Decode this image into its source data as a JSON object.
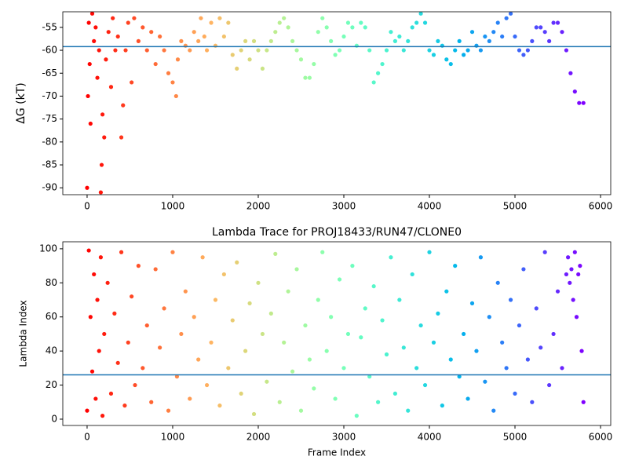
{
  "chart_data": [
    {
      "type": "scatter",
      "ylabel": "ΔG (kT)",
      "colormap": "rainbow_r",
      "hline": -59.2,
      "hline_color": "#1f77b4",
      "xlim": [
        -284,
        6119
      ],
      "ylim": [
        -91.5,
        -51.6
      ],
      "xticks": [
        0,
        1000,
        2000,
        3000,
        4000,
        5000,
        6000
      ],
      "yticks": [
        -90,
        -85,
        -80,
        -75,
        -70,
        -65,
        -60,
        -55
      ],
      "x": [
        0,
        10,
        20,
        30,
        40,
        60,
        80,
        100,
        120,
        140,
        160,
        170,
        180,
        200,
        220,
        250,
        280,
        300,
        330,
        360,
        400,
        420,
        450,
        480,
        520,
        550,
        600,
        650,
        700,
        750,
        800,
        850,
        900,
        950,
        1000,
        1040,
        1060,
        1100,
        1150,
        1200,
        1250,
        1300,
        1330,
        1370,
        1400,
        1450,
        1500,
        1550,
        1600,
        1650,
        1700,
        1750,
        1800,
        1850,
        1900,
        1950,
        2000,
        2050,
        2100,
        2150,
        2200,
        2250,
        2300,
        2350,
        2400,
        2450,
        2500,
        2550,
        2600,
        2650,
        2700,
        2750,
        2800,
        2850,
        2900,
        2950,
        3000,
        3050,
        3100,
        3150,
        3200,
        3250,
        3300,
        3350,
        3400,
        3450,
        3500,
        3550,
        3600,
        3650,
        3700,
        3750,
        3800,
        3850,
        3900,
        3950,
        4000,
        4050,
        4100,
        4150,
        4200,
        4250,
        4300,
        4350,
        4400,
        4450,
        4500,
        4550,
        4600,
        4650,
        4700,
        4750,
        4800,
        4850,
        4900,
        4950,
        5000,
        5050,
        5100,
        5150,
        5200,
        5250,
        5300,
        5350,
        5400,
        5450,
        5500,
        5550,
        5600,
        5650,
        5700,
        5750,
        5800
      ],
      "y": [
        -90,
        -70,
        -54,
        -63,
        -76,
        -52,
        -58,
        -55,
        -66,
        -60,
        -91,
        -85,
        -74,
        -79,
        -62,
        -56,
        -68,
        -53,
        -60,
        -57,
        -79,
        -72,
        -60,
        -54,
        -67,
        -53,
        -58,
        -55,
        -60,
        -56,
        -63,
        -57,
        -60,
        -65,
        -67,
        -70,
        -62,
        -58,
        -59,
        -60,
        -56,
        -58,
        -53,
        -57,
        -60,
        -54,
        -59,
        -53,
        -57,
        -54,
        -61,
        -64,
        -60,
        -58,
        -62,
        -58,
        -60,
        -64,
        -60,
        -58,
        -56,
        -54,
        -53,
        -55,
        -58,
        -60,
        -62,
        -66,
        -66,
        -63,
        -56,
        -53,
        -55,
        -58,
        -61,
        -60,
        -57,
        -54,
        -55,
        -59,
        -54,
        -55,
        -60,
        -67,
        -65,
        -63,
        -60,
        -56,
        -58,
        -57,
        -60,
        -58,
        -55,
        -54,
        -52,
        -54,
        -60,
        -61,
        -58,
        -59,
        -62,
        -63,
        -60,
        -58,
        -61,
        -60,
        -56,
        -59,
        -60,
        -57,
        -58,
        -56,
        -54,
        -57,
        -53,
        -52,
        -57,
        -60,
        -61,
        -60,
        -58,
        -55,
        -55,
        -56,
        -58,
        -54,
        -54,
        -56,
        -60,
        -65,
        -69,
        -71.5,
        -71.5
      ]
    },
    {
      "type": "scatter",
      "title": "Lambda Trace for PROJ18433/RUN47/CLONE0",
      "xlabel": "Frame Index",
      "ylabel": "Lambda Index",
      "colormap": "rainbow_r",
      "hline": 26,
      "hline_color": "#1f77b4",
      "xlim": [
        -284,
        6119
      ],
      "ylim": [
        -3.7,
        104.1
      ],
      "xticks": [
        0,
        1000,
        2000,
        3000,
        4000,
        5000,
        6000
      ],
      "yticks": [
        0,
        20,
        40,
        60,
        80,
        100
      ],
      "x": [
        0,
        20,
        40,
        60,
        80,
        100,
        120,
        140,
        160,
        180,
        200,
        240,
        280,
        320,
        360,
        400,
        440,
        480,
        520,
        560,
        600,
        650,
        700,
        750,
        800,
        850,
        900,
        950,
        1000,
        1050,
        1100,
        1150,
        1200,
        1250,
        1300,
        1350,
        1400,
        1450,
        1500,
        1550,
        1600,
        1650,
        1700,
        1750,
        1800,
        1850,
        1900,
        1950,
        2000,
        2050,
        2100,
        2150,
        2200,
        2250,
        2300,
        2350,
        2400,
        2450,
        2500,
        2550,
        2600,
        2650,
        2700,
        2750,
        2800,
        2850,
        2900,
        2950,
        3000,
        3050,
        3100,
        3150,
        3200,
        3250,
        3300,
        3350,
        3400,
        3450,
        3500,
        3550,
        3600,
        3650,
        3700,
        3750,
        3800,
        3850,
        3900,
        3950,
        4000,
        4050,
        4100,
        4150,
        4200,
        4250,
        4300,
        4350,
        4400,
        4450,
        4500,
        4550,
        4600,
        4650,
        4700,
        4750,
        4800,
        4850,
        4900,
        4950,
        5000,
        5050,
        5100,
        5150,
        5200,
        5250,
        5300,
        5350,
        5400,
        5450,
        5500,
        5550,
        5600,
        5620,
        5640,
        5660,
        5680,
        5700,
        5720,
        5740,
        5760,
        5780,
        5800
      ],
      "y": [
        5,
        99,
        60,
        28,
        85,
        12,
        70,
        40,
        95,
        2,
        50,
        80,
        15,
        62,
        33,
        98,
        8,
        45,
        72,
        20,
        90,
        30,
        55,
        10,
        88,
        42,
        65,
        5,
        98,
        25,
        50,
        75,
        12,
        60,
        35,
        95,
        20,
        45,
        70,
        8,
        85,
        30,
        58,
        92,
        15,
        40,
        68,
        3,
        80,
        50,
        22,
        62,
        97,
        10,
        45,
        75,
        28,
        88,
        5,
        55,
        35,
        18,
        70,
        98,
        40,
        60,
        12,
        82,
        30,
        50,
        90,
        2,
        48,
        65,
        25,
        78,
        10,
        58,
        38,
        95,
        15,
        70,
        42,
        5,
        85,
        30,
        55,
        20,
        98,
        45,
        62,
        8,
        75,
        35,
        90,
        25,
        50,
        12,
        68,
        40,
        95,
        22,
        60,
        5,
        80,
        45,
        30,
        70,
        15,
        55,
        88,
        35,
        10,
        65,
        42,
        98,
        20,
        50,
        75,
        30,
        85,
        95,
        80,
        88,
        70,
        98,
        60,
        85,
        90,
        40,
        10
      ]
    }
  ]
}
